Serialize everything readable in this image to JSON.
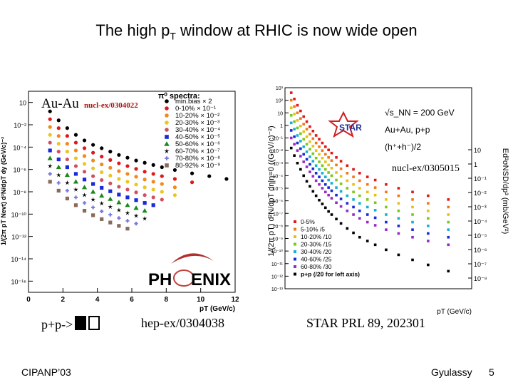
{
  "slide": {
    "title_main": "The high p",
    "title_sub": "T",
    "title_rest": " window at RHIC is now wide open",
    "footer_left": "CIPANP’03",
    "footer_right": "Gyulassy",
    "page_number": "5"
  },
  "captions": {
    "pp_label": "p+p->",
    "phenix_ref": "hep-ex/0304038",
    "star_ref": "STAR PRL 89, 202301"
  },
  "chart_data": [
    {
      "type": "scatter",
      "panel": "PHENIX",
      "label_system": "Au-Au",
      "label_ref": "nucl-ex/0304022",
      "legend_title": "π⁰ spectra:",
      "legend_position": "top-right",
      "ylabel": "1/(2π pT Nevt) d²N/dpT dy (GeV/c)⁻²",
      "xlabel": "pT (GeV/c)",
      "xlim": [
        0,
        12
      ],
      "ylim_log10": [
        -16,
        2
      ],
      "x_ticks": [
        "0",
        "2",
        "4",
        "6",
        "8",
        "10",
        "12"
      ],
      "y_ticks": [
        "10",
        "10⁻²",
        "10⁻⁴",
        "10⁻⁶",
        "10⁻⁸",
        "10⁻¹⁰",
        "10⁻¹²",
        "10⁻¹⁴",
        "10⁻¹⁶"
      ],
      "logo_text_left": "PH",
      "logo_text_right": "ENIX",
      "x": [
        1.25,
        1.75,
        2.25,
        2.75,
        3.25,
        3.75,
        4.25,
        4.75,
        5.25,
        5.75,
        6.25,
        6.75,
        7.25,
        7.75,
        8.5,
        9.5,
        10.5,
        11.5
      ],
      "series": [
        {
          "name": "min.bias × 2",
          "color": "#000000",
          "marker": "circle",
          "log10_values": [
            0.2,
            -0.6,
            -1.3,
            -1.9,
            -2.4,
            -2.8,
            -3.1,
            -3.4,
            -3.7,
            -3.95,
            -4.2,
            -4.4,
            -4.6,
            -4.8,
            -5.05,
            -5.35,
            -5.6,
            -5.85
          ]
        },
        {
          "name": "0-10% × 10⁻¹",
          "color": "#e01818",
          "marker": "circle",
          "log10_values": [
            -0.5,
            -1.3,
            -2.0,
            -2.6,
            -3.1,
            -3.5,
            -3.85,
            -4.15,
            -4.45,
            -4.7,
            -4.95,
            -5.2,
            -5.4,
            -5.6,
            -5.85,
            -6.15
          ]
        },
        {
          "name": "10-20% × 10⁻²",
          "color": "#f08a1a",
          "marker": "circle",
          "log10_values": [
            -1.2,
            -2.0,
            -2.7,
            -3.3,
            -3.8,
            -4.2,
            -4.55,
            -4.85,
            -5.15,
            -5.4,
            -5.65,
            -5.9,
            -6.1,
            -6.3,
            -6.6
          ]
        },
        {
          "name": "20-30% × 10⁻³",
          "color": "#e8c820",
          "marker": "circle",
          "log10_values": [
            -1.9,
            -2.7,
            -3.4,
            -4.0,
            -4.5,
            -4.9,
            -5.25,
            -5.55,
            -5.85,
            -6.1,
            -6.35,
            -6.6,
            -6.8,
            -7.0,
            -7.3
          ]
        },
        {
          "name": "30-40% × 10⁻⁴",
          "color": "#d05060",
          "marker": "circle",
          "log10_values": [
            -2.6,
            -3.4,
            -4.1,
            -4.7,
            -5.2,
            -5.6,
            -5.95,
            -6.25,
            -6.55,
            -6.8,
            -7.05,
            -7.3,
            -7.5,
            -7.7
          ]
        },
        {
          "name": "40-50% × 10⁻⁵",
          "color": "#1a2ad8",
          "marker": "square",
          "log10_values": [
            -3.3,
            -4.1,
            -4.8,
            -5.4,
            -5.9,
            -6.3,
            -6.65,
            -6.95,
            -7.25,
            -7.5,
            -7.75,
            -8.0,
            -8.2
          ]
        },
        {
          "name": "50-60% × 10⁻⁶",
          "color": "#1a8a1a",
          "marker": "triangle",
          "log10_values": [
            -4.0,
            -4.8,
            -5.5,
            -6.1,
            -6.6,
            -7.0,
            -7.35,
            -7.65,
            -7.95,
            -8.2,
            -8.45,
            -8.7
          ]
        },
        {
          "name": "60-70% × 10⁻⁷",
          "color": "#000000",
          "marker": "star",
          "log10_values": [
            -4.7,
            -5.5,
            -6.2,
            -6.8,
            -7.3,
            -7.7,
            -8.05,
            -8.35,
            -8.65,
            -8.9,
            -9.15,
            -9.4
          ]
        },
        {
          "name": "70-80% × 10⁻⁸",
          "color": "#7878e0",
          "marker": "cross",
          "log10_values": [
            -5.4,
            -6.2,
            -6.9,
            -7.5,
            -8.0,
            -8.4,
            -8.75,
            -9.05,
            -9.35,
            -9.6,
            -9.85
          ]
        },
        {
          "name": "80-92% × 10⁻⁹",
          "color": "#8a6a5a",
          "marker": "square",
          "log10_values": [
            -6.1,
            -6.9,
            -7.6,
            -8.2,
            -8.7,
            -9.1,
            -9.45,
            -9.75,
            -10.05,
            -10.3
          ]
        }
      ]
    },
    {
      "type": "scatter",
      "panel": "STAR",
      "legend_lines": [
        "√s_NN = 200 GeV",
        "Au+Au, p+p",
        "(h⁺+h⁻)/2"
      ],
      "logo_text": "STAR",
      "ref_label": "nucl-ex/0305015",
      "legend_position": "bottom-left",
      "ylabel": "1/(2π pT) d²N/dpT dη|η=0 ((GeV/c)⁻²)",
      "ylabel_right": "Ed³σNSD/dp³ (mb/GeV²)",
      "xlabel": "pT (GeV/c)",
      "xlim": [
        0,
        12
      ],
      "ylim_log10": [
        -13,
        3
      ],
      "y_ticks": [
        "10³",
        "10²",
        "10",
        "1",
        "10⁻¹",
        "10⁻²",
        "10⁻³",
        "10⁻⁴",
        "10⁻⁵",
        "10⁻⁶",
        "10⁻⁷",
        "10⁻⁸",
        "10⁻⁹",
        "10⁻¹⁰",
        "10⁻¹¹",
        "10⁻¹²",
        "10⁻¹³"
      ],
      "y_ticks_right": [
        "10",
        "1",
        "10⁻¹",
        "10⁻²",
        "10⁻³",
        "10⁻⁴",
        "10⁻⁵",
        "10⁻⁶",
        "10⁻⁷",
        "10⁻⁸"
      ],
      "x": [
        0.4,
        0.6,
        0.8,
        1.0,
        1.2,
        1.4,
        1.6,
        1.8,
        2.0,
        2.2,
        2.4,
        2.6,
        2.8,
        3.0,
        3.3,
        3.6,
        4.0,
        4.4,
        4.8,
        5.3,
        5.8,
        6.5,
        7.3,
        8.2,
        9.2,
        10.5
      ],
      "series": [
        {
          "name": "0-5%",
          "color": "#e01818",
          "log10_values": [
            2.6,
            2.1,
            1.6,
            1.15,
            0.7,
            0.3,
            -0.1,
            -0.45,
            -0.8,
            -1.1,
            -1.4,
            -1.7,
            -1.95,
            -2.2,
            -2.55,
            -2.85,
            -3.2,
            -3.5,
            -3.8,
            -4.1,
            -4.35,
            -4.7,
            -5.0,
            -5.3,
            -5.6,
            -5.9
          ]
        },
        {
          "name": "5-10% /5",
          "color": "#f07818",
          "log10_values": [
            2.0,
            1.5,
            1.0,
            0.55,
            0.1,
            -0.3,
            -0.7,
            -1.05,
            -1.4,
            -1.7,
            -2.0,
            -2.3,
            -2.55,
            -2.8,
            -3.15,
            -3.45,
            -3.8,
            -4.1,
            -4.4,
            -4.7,
            -4.95,
            -5.3,
            -5.6,
            -5.9,
            -6.2,
            -6.5
          ]
        },
        {
          "name": "10-20% /10",
          "color": "#e8c010",
          "log10_values": [
            1.4,
            0.9,
            0.4,
            -0.05,
            -0.5,
            -0.9,
            -1.3,
            -1.65,
            -2.0,
            -2.3,
            -2.6,
            -2.9,
            -3.15,
            -3.4,
            -3.75,
            -4.05,
            -4.4,
            -4.7,
            -5.0,
            -5.3,
            -5.55,
            -5.9,
            -6.2,
            -6.5,
            -6.8,
            -7.1
          ]
        },
        {
          "name": "20-30% /15",
          "color": "#7ac81a",
          "log10_values": [
            0.8,
            0.3,
            -0.2,
            -0.65,
            -1.1,
            -1.5,
            -1.9,
            -2.25,
            -2.6,
            -2.9,
            -3.2,
            -3.5,
            -3.75,
            -4.0,
            -4.35,
            -4.65,
            -5.0,
            -5.3,
            -5.6,
            -5.9,
            -6.15,
            -6.5,
            -6.8,
            -7.1,
            -7.4,
            -7.7
          ]
        },
        {
          "name": "30-40% /20",
          "color": "#18b0d0",
          "log10_values": [
            0.2,
            -0.3,
            -0.8,
            -1.25,
            -1.7,
            -2.1,
            -2.5,
            -2.85,
            -3.2,
            -3.5,
            -3.8,
            -4.1,
            -4.35,
            -4.6,
            -4.95,
            -5.25,
            -5.6,
            -5.9,
            -6.2,
            -6.5,
            -6.75,
            -7.1,
            -7.4,
            -7.7,
            -8.0,
            -8.3
          ]
        },
        {
          "name": "40-60% /25",
          "color": "#1a2ad8",
          "log10_values": [
            -0.4,
            -0.9,
            -1.4,
            -1.85,
            -2.3,
            -2.7,
            -3.1,
            -3.45,
            -3.8,
            -4.1,
            -4.4,
            -4.7,
            -4.95,
            -5.2,
            -5.55,
            -5.85,
            -6.2,
            -6.5,
            -6.8,
            -7.1,
            -7.35,
            -7.7,
            -8.0,
            -8.3,
            -8.6,
            -8.9
          ]
        },
        {
          "name": "60-80% /30",
          "color": "#9a28c8",
          "log10_values": [
            -1.0,
            -1.5,
            -2.0,
            -2.45,
            -2.9,
            -3.3,
            -3.7,
            -4.05,
            -4.4,
            -4.7,
            -5.0,
            -5.3,
            -5.55,
            -5.8,
            -6.15,
            -6.45,
            -6.8,
            -7.1,
            -7.4,
            -7.7,
            -7.95,
            -8.3,
            -8.6,
            -8.9,
            -9.2,
            -9.5
          ]
        },
        {
          "name": "p+p (/20 for left axis)",
          "color": "#000000",
          "log10_values": [
            -1.8,
            -2.4,
            -3.0,
            -3.5,
            -4.0,
            -4.45,
            -4.85,
            -5.25,
            -5.6,
            -5.95,
            -6.25,
            -6.55,
            -6.85,
            -7.1,
            -7.45,
            -7.8,
            -8.2,
            -8.55,
            -8.9,
            -9.2,
            -9.5,
            -9.9,
            -10.3,
            -10.7,
            -11.1,
            -11.6
          ]
        }
      ]
    }
  ]
}
